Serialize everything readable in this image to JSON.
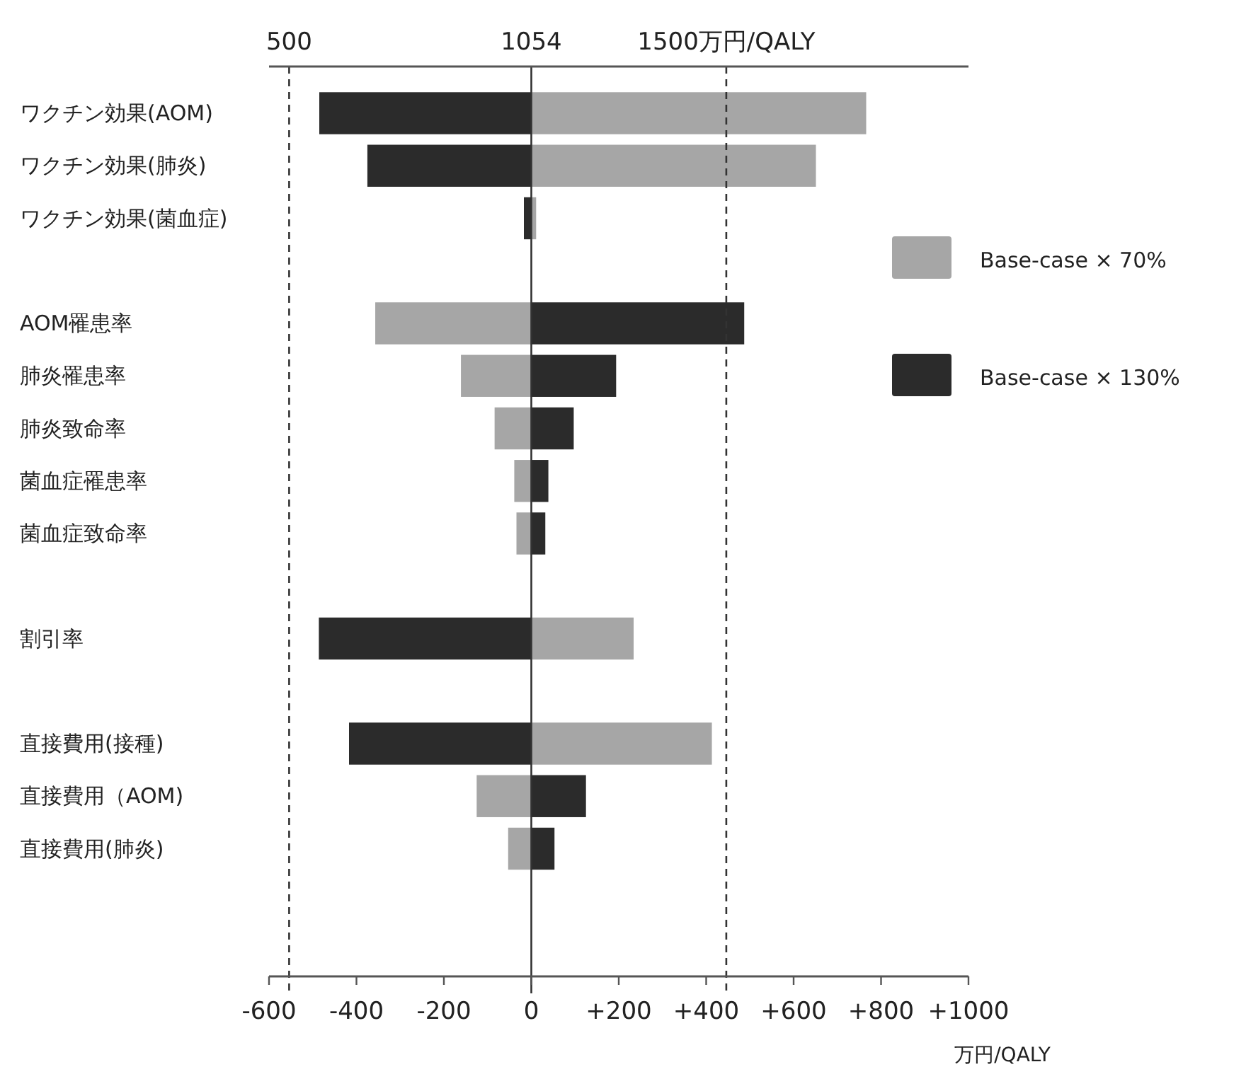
{
  "chart_data": {
    "type": "bar",
    "orientation": "horizontal",
    "categories": [
      "ワクチン効果(AOM)",
      "ワクチン効果(肺炎)",
      "ワクチン効果(菌血症)",
      null,
      "AOM罹患率",
      "肺炎罹患率",
      "肺炎致命率",
      "菌血症罹患率",
      "菌血症致命率",
      null,
      "割引率",
      null,
      "直接費用(接種)",
      "直接費用（AOM)",
      "直接費用(肺炎)",
      null,
      null
    ],
    "series": [
      {
        "name": "Base-case × 70%",
        "color": "#a6a6a6",
        "values": [
          766,
          651,
          11,
          null,
          -357,
          -161,
          -84,
          -39,
          -34,
          null,
          234,
          null,
          413,
          -125,
          -53,
          null,
          null
        ]
      },
      {
        "name": "Base-case × 130%",
        "color": "#2b2b2b",
        "values": [
          -485,
          -375,
          -17,
          null,
          487,
          194,
          97,
          39,
          32,
          null,
          -486,
          null,
          -417,
          125,
          53,
          null,
          null
        ]
      }
    ],
    "xlim": [
      -600,
      1000
    ],
    "xticks": [
      {
        "value": -600,
        "label": "-600"
      },
      {
        "value": -400,
        "label": "-400"
      },
      {
        "value": -200,
        "label": "-200"
      },
      0,
      {
        "value": 200,
        "label": "+200"
      },
      {
        "value": 400,
        "label": "+400"
      },
      {
        "value": 600,
        "label": "+600"
      },
      {
        "value": 800,
        "label": "+800"
      },
      {
        "value": 1000,
        "label": "+1000"
      }
    ],
    "x2lim": [
      454,
      2054
    ],
    "x2ticks": [
      500,
      1054,
      {
        "value": 1500,
        "label": "1500万円/QALY"
      }
    ],
    "xlabel": "万円/QALY",
    "ref_lines": [
      {
        "axis": "x",
        "value": -554,
        "line_style": "dashed",
        "color": "#333333"
      },
      {
        "axis": "x",
        "value": 0,
        "line_style": "solid",
        "color": "#333333"
      },
      {
        "axis": "x",
        "value": 446,
        "line_style": "dashed",
        "color": "#333333"
      }
    ],
    "stacked": true,
    "legend": "right",
    "grid": false
  }
}
